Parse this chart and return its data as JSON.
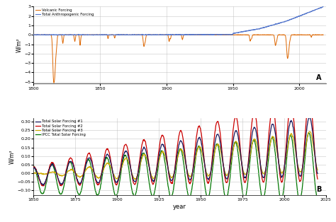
{
  "panel_A": {
    "ylabel": "W/m²",
    "xlim": [
      1800,
      2020
    ],
    "ylim": [
      -5.2,
      3.0
    ],
    "yticks": [
      -5,
      -4,
      -3,
      -2,
      -1,
      0,
      1,
      2,
      3
    ],
    "xticks": [
      1800,
      1850,
      1900,
      1950,
      2000
    ],
    "label": "A",
    "legend": [
      "Total Anthropogenic Forcing",
      "Volcanic Forcing"
    ],
    "colors": [
      "#5577cc",
      "#dd6600"
    ]
  },
  "panel_B": {
    "xlabel": "year",
    "ylabel": "W/m²",
    "xlim": [
      1850,
      2020
    ],
    "ylim": [
      -0.13,
      0.32
    ],
    "yticks": [
      -0.1,
      -0.05,
      0.0,
      0.05,
      0.1,
      0.15,
      0.2,
      0.25,
      0.3
    ],
    "xticks": [
      1850,
      1875,
      1900,
      1925,
      1950,
      1975,
      2000,
      2025
    ],
    "label": "B",
    "legend": [
      "Total Solar Forcing #1",
      "Total Solar Forcing #2",
      "Total Solar Forcing #3",
      "IPCC Total Solar Forcing"
    ],
    "colors": [
      "#1a1a5e",
      "#cc0000",
      "#ccaa00",
      "#007700"
    ]
  },
  "background_color": "#ffffff",
  "grid_color": "#bbbbbb"
}
